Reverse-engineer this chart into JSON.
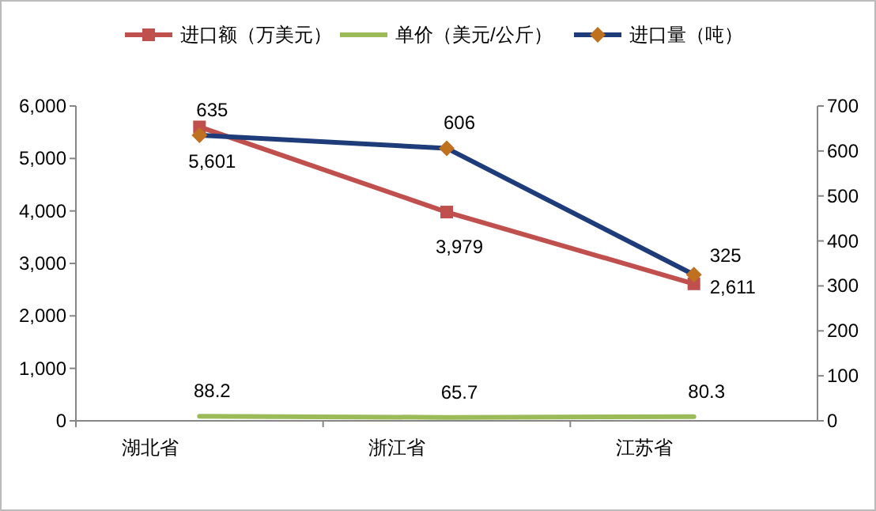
{
  "chart_data": {
    "type": "line",
    "categories": [
      "湖北省",
      "浙江省",
      "江苏省"
    ],
    "series": [
      {
        "name": "进口额（万美元）",
        "color": "#c0504d",
        "marker": "square",
        "values": [
          5601,
          3979,
          2611
        ],
        "value_labels": [
          "5,601",
          "3,979",
          "2,611"
        ]
      },
      {
        "name": "单价（美元/公斤）",
        "color": "#9bbb59",
        "marker": "none",
        "values": [
          88.2,
          65.7,
          80.3
        ],
        "value_labels": [
          "88.2",
          "65.7",
          "80.3"
        ]
      },
      {
        "name": "进口量（吨）",
        "color": "#1f3c7a",
        "marker": "diamond",
        "colors": [
          "#c0711f",
          "#c0711f",
          "#c0711f"
        ],
        "axis": "y2",
        "values": [
          635,
          606,
          325
        ],
        "value_labels": [
          "635",
          "606",
          "325"
        ]
      }
    ],
    "ylim": [
      0,
      6000
    ],
    "yticks": [
      {
        "value": 0,
        "label": "0"
      },
      {
        "value": 1000,
        "label": "1,000"
      },
      {
        "value": 2000,
        "label": "2,000"
      },
      {
        "value": 3000,
        "label": "3,000"
      },
      {
        "value": 4000,
        "label": "4,000"
      },
      {
        "value": 5000,
        "label": "5,000"
      },
      {
        "value": 6000,
        "label": "6,000"
      }
    ],
    "y2lim": [
      0,
      700
    ],
    "y2ticks": [
      0,
      100,
      200,
      300,
      400,
      500,
      600,
      700
    ],
    "legend": "top",
    "grid": false
  }
}
